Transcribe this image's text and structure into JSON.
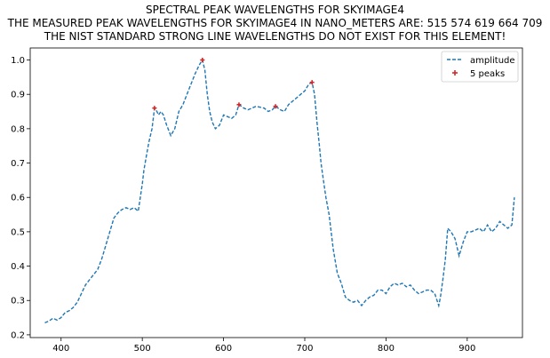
{
  "chart_data": {
    "type": "line",
    "title_lines": [
      "SPECTRAL PEAK WAVELENGTHS FOR SKYIMAGE4",
      "THE MEASURED PEAK WAVELENGTHS FOR SKYIMAGE4 IN NANO_METERS ARE: 515 574 619 664 709",
      "THE NIST STANDARD STRONG LINE WAVELENGTHS DO NOT EXIST FOR THIS ELEMENT!"
    ],
    "xlabel": "",
    "ylabel": "",
    "xlim": [
      362,
      968
    ],
    "ylim": [
      0.192,
      1.035
    ],
    "x_ticks": [
      400,
      500,
      600,
      700,
      800,
      900
    ],
    "y_ticks": [
      0.2,
      0.3,
      0.4,
      0.5,
      0.6,
      0.7,
      0.8,
      0.9,
      1.0
    ],
    "x_tick_labels": [
      "400",
      "500",
      "600",
      "700",
      "800",
      "900"
    ],
    "y_tick_labels": [
      "0.2",
      "0.3",
      "0.4",
      "0.5",
      "0.6",
      "0.7",
      "0.8",
      "0.9",
      "1.0"
    ],
    "grid": false,
    "legend_position": "top-right",
    "series": [
      {
        "name": "amplitude",
        "style": "dashed line",
        "color": "#1f77b4",
        "x": [
          380,
          385,
          390,
          395,
          400,
          405,
          410,
          415,
          420,
          425,
          430,
          435,
          440,
          445,
          450,
          455,
          460,
          465,
          470,
          475,
          480,
          485,
          490,
          495,
          500,
          502,
          505,
          508,
          510,
          512,
          515,
          518,
          520,
          523,
          526,
          530,
          535,
          540,
          545,
          550,
          555,
          560,
          565,
          570,
          574,
          577,
          580,
          583,
          586,
          590,
          595,
          600,
          605,
          610,
          615,
          619,
          625,
          630,
          640,
          650,
          655,
          660,
          664,
          670,
          675,
          680,
          685,
          690,
          695,
          700,
          705,
          709,
          712,
          715,
          718,
          720,
          723,
          726,
          730,
          735,
          740,
          745,
          750,
          755,
          760,
          765,
          770,
          775,
          780,
          785,
          790,
          795,
          800,
          805,
          810,
          815,
          820,
          825,
          830,
          835,
          840,
          845,
          850,
          855,
          860,
          865,
          867,
          870,
          873,
          876,
          880,
          885,
          890,
          895,
          900,
          905,
          910,
          915,
          920,
          925,
          930,
          935,
          940,
          945,
          950,
          955,
          958
        ],
        "y": [
          0.235,
          0.24,
          0.248,
          0.243,
          0.25,
          0.265,
          0.27,
          0.28,
          0.295,
          0.32,
          0.345,
          0.36,
          0.375,
          0.39,
          0.42,
          0.46,
          0.5,
          0.54,
          0.555,
          0.565,
          0.57,
          0.565,
          0.57,
          0.56,
          0.64,
          0.68,
          0.72,
          0.76,
          0.78,
          0.8,
          0.86,
          0.85,
          0.84,
          0.85,
          0.84,
          0.81,
          0.78,
          0.8,
          0.85,
          0.87,
          0.9,
          0.93,
          0.96,
          0.985,
          1.0,
          0.97,
          0.9,
          0.85,
          0.82,
          0.8,
          0.81,
          0.84,
          0.835,
          0.83,
          0.84,
          0.87,
          0.86,
          0.855,
          0.865,
          0.86,
          0.85,
          0.855,
          0.865,
          0.855,
          0.85,
          0.87,
          0.88,
          0.89,
          0.9,
          0.91,
          0.93,
          0.935,
          0.9,
          0.82,
          0.75,
          0.7,
          0.65,
          0.6,
          0.55,
          0.45,
          0.38,
          0.35,
          0.31,
          0.3,
          0.295,
          0.3,
          0.285,
          0.3,
          0.31,
          0.315,
          0.33,
          0.33,
          0.32,
          0.34,
          0.35,
          0.345,
          0.35,
          0.34,
          0.345,
          0.33,
          0.32,
          0.325,
          0.33,
          0.33,
          0.32,
          0.285,
          0.31,
          0.36,
          0.42,
          0.51,
          0.5,
          0.48,
          0.43,
          0.47,
          0.5,
          0.5,
          0.505,
          0.51,
          0.5,
          0.52,
          0.5,
          0.51,
          0.53,
          0.52,
          0.51,
          0.52,
          0.6
        ]
      },
      {
        "name": "5 peaks",
        "style": "markers",
        "color": "#d62728",
        "x": [
          515,
          574,
          619,
          664,
          709
        ],
        "y": [
          0.86,
          1.0,
          0.87,
          0.865,
          0.935
        ]
      }
    ]
  }
}
